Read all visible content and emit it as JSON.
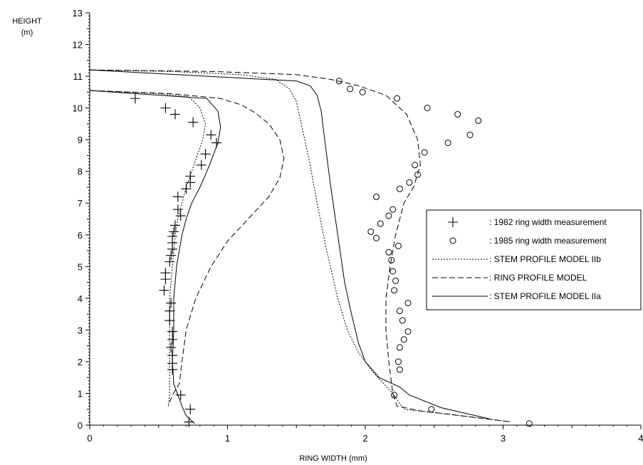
{
  "chart_data": {
    "type": "line",
    "xlabel": "RING WIDTH (mm)",
    "ylabel_line1": "HEIGHT",
    "ylabel_line2": "(m)",
    "xlim": [
      0,
      4
    ],
    "ylim": [
      0,
      13
    ],
    "x_ticks": [
      "0",
      "1",
      "2",
      "3",
      "4"
    ],
    "y_ticks": [
      "0",
      "1",
      "2",
      "3",
      "4",
      "5",
      "6",
      "7",
      "8",
      "9",
      "10",
      "11",
      "12",
      "13"
    ],
    "grid": false,
    "legend_position": "right",
    "legend": [
      {
        "label": ": 1982 ring width measurement",
        "marker": "plus"
      },
      {
        "label": ": 1985 ring width measurement",
        "marker": "circle"
      },
      {
        "label": ": STEM PROFILE MODEL IIb",
        "line": "dotted"
      },
      {
        "label": ": RING PROFILE MODEL",
        "line": "dashed"
      },
      {
        "label": ": STEM PROFILE MODEL IIa",
        "line": "solid"
      }
    ],
    "series": [
      {
        "name": "1982 ring width measurement",
        "kind": "scatter",
        "marker": "plus",
        "points": [
          [
            0.33,
            10.3
          ],
          [
            0.55,
            10.0
          ],
          [
            0.62,
            9.8
          ],
          [
            0.75,
            9.55
          ],
          [
            0.88,
            9.15
          ],
          [
            0.92,
            8.9
          ],
          [
            0.84,
            8.55
          ],
          [
            0.81,
            8.2
          ],
          [
            0.73,
            7.85
          ],
          [
            0.73,
            7.65
          ],
          [
            0.7,
            7.45
          ],
          [
            0.64,
            7.2
          ],
          [
            0.64,
            6.8
          ],
          [
            0.66,
            6.6
          ],
          [
            0.62,
            6.3
          ],
          [
            0.61,
            6.1
          ],
          [
            0.6,
            5.95
          ],
          [
            0.6,
            5.75
          ],
          [
            0.6,
            5.55
          ],
          [
            0.59,
            5.35
          ],
          [
            0.58,
            5.15
          ],
          [
            0.55,
            4.8
          ],
          [
            0.55,
            4.6
          ],
          [
            0.54,
            4.25
          ],
          [
            0.59,
            3.85
          ],
          [
            0.58,
            3.6
          ],
          [
            0.58,
            3.3
          ],
          [
            0.6,
            2.95
          ],
          [
            0.6,
            2.7
          ],
          [
            0.59,
            2.45
          ],
          [
            0.6,
            2.2
          ],
          [
            0.6,
            1.95
          ],
          [
            0.6,
            1.75
          ],
          [
            0.66,
            0.95
          ],
          [
            0.73,
            0.5
          ],
          [
            0.72,
            0.1
          ]
        ]
      },
      {
        "name": "1985 ring width measurement",
        "kind": "scatter",
        "marker": "circle",
        "points": [
          [
            1.81,
            10.85
          ],
          [
            1.89,
            10.6
          ],
          [
            1.98,
            10.5
          ],
          [
            2.23,
            10.3
          ],
          [
            2.45,
            10.0
          ],
          [
            2.67,
            9.8
          ],
          [
            2.82,
            9.6
          ],
          [
            2.76,
            9.15
          ],
          [
            2.6,
            8.9
          ],
          [
            2.43,
            8.6
          ],
          [
            2.36,
            8.2
          ],
          [
            2.38,
            7.9
          ],
          [
            2.32,
            7.65
          ],
          [
            2.25,
            7.45
          ],
          [
            2.08,
            7.2
          ],
          [
            2.2,
            6.8
          ],
          [
            2.17,
            6.6
          ],
          [
            2.11,
            6.35
          ],
          [
            2.04,
            6.1
          ],
          [
            2.08,
            5.9
          ],
          [
            2.24,
            5.65
          ],
          [
            2.17,
            5.45
          ],
          [
            2.19,
            5.2
          ],
          [
            2.2,
            4.85
          ],
          [
            2.22,
            4.55
          ],
          [
            2.21,
            4.25
          ],
          [
            2.31,
            3.85
          ],
          [
            2.25,
            3.6
          ],
          [
            2.27,
            3.3
          ],
          [
            2.31,
            2.95
          ],
          [
            2.28,
            2.7
          ],
          [
            2.25,
            2.45
          ],
          [
            2.24,
            2.0
          ],
          [
            2.25,
            1.75
          ],
          [
            2.21,
            0.95
          ],
          [
            2.48,
            0.5
          ],
          [
            3.19,
            0.05
          ]
        ]
      },
      {
        "name": "STEM PROFILE MODEL IIb",
        "kind": "line",
        "dash": "2,2",
        "points": [
          [
            0.0,
            10.55
          ],
          [
            0.5,
            10.45
          ],
          [
            0.72,
            10.35
          ],
          [
            0.8,
            10.0
          ],
          [
            0.84,
            9.5
          ],
          [
            0.82,
            9.0
          ],
          [
            0.78,
            8.5
          ],
          [
            0.74,
            8.0
          ],
          [
            0.7,
            7.5
          ],
          [
            0.67,
            7.0
          ],
          [
            0.64,
            6.5
          ],
          [
            0.62,
            6.0
          ],
          [
            0.61,
            5.5
          ],
          [
            0.6,
            5.0
          ],
          [
            0.59,
            4.5
          ],
          [
            0.58,
            4.0
          ],
          [
            0.58,
            3.0
          ],
          [
            0.58,
            2.0
          ],
          [
            0.58,
            1.0
          ],
          [
            0.57,
            0.6
          ]
        ]
      },
      {
        "name": "STEM PROFILE MODEL IIb upper",
        "kind": "line",
        "dash": "2,2",
        "points": [
          [
            0.0,
            11.2
          ],
          [
            0.6,
            11.15
          ],
          [
            1.1,
            11.05
          ],
          [
            1.35,
            10.9
          ],
          [
            1.45,
            10.6
          ],
          [
            1.5,
            10.2
          ],
          [
            1.53,
            9.6
          ],
          [
            1.56,
            9.0
          ],
          [
            1.6,
            8.2
          ],
          [
            1.65,
            7.0
          ],
          [
            1.72,
            5.5
          ],
          [
            1.8,
            4.0
          ],
          [
            1.87,
            3.0
          ],
          [
            1.95,
            2.3
          ],
          [
            2.05,
            1.7
          ],
          [
            2.2,
            1.0
          ],
          [
            2.28,
            0.5
          ],
          [
            2.6,
            0.35
          ],
          [
            3.06,
            0.1
          ]
        ]
      },
      {
        "name": "RING PROFILE MODEL",
        "kind": "line",
        "dash": "8,4",
        "points": [
          [
            0.0,
            10.55
          ],
          [
            0.6,
            10.45
          ],
          [
            0.95,
            10.3
          ],
          [
            1.1,
            10.1
          ],
          [
            1.2,
            9.85
          ],
          [
            1.3,
            9.5
          ],
          [
            1.38,
            9.0
          ],
          [
            1.41,
            8.4
          ],
          [
            1.38,
            7.8
          ],
          [
            1.3,
            7.2
          ],
          [
            1.15,
            6.5
          ],
          [
            1.0,
            5.8
          ],
          [
            0.88,
            5.0
          ],
          [
            0.77,
            4.0
          ],
          [
            0.7,
            3.0
          ],
          [
            0.67,
            2.0
          ],
          [
            0.65,
            1.3
          ],
          [
            0.6,
            0.95
          ],
          [
            0.57,
            0.6
          ]
        ]
      },
      {
        "name": "RING PROFILE MODEL upper",
        "kind": "line",
        "dash": "8,4",
        "points": [
          [
            0.0,
            11.2
          ],
          [
            0.9,
            11.15
          ],
          [
            1.5,
            11.05
          ],
          [
            1.75,
            10.9
          ],
          [
            1.95,
            10.7
          ],
          [
            2.15,
            10.4
          ],
          [
            2.3,
            9.8
          ],
          [
            2.38,
            9.0
          ],
          [
            2.4,
            8.2
          ],
          [
            2.35,
            7.5
          ],
          [
            2.28,
            7.0
          ],
          [
            2.22,
            6.0
          ],
          [
            2.18,
            5.0
          ],
          [
            2.15,
            4.0
          ],
          [
            2.15,
            3.0
          ],
          [
            2.17,
            2.0
          ],
          [
            2.2,
            1.0
          ],
          [
            2.23,
            0.6
          ],
          [
            2.4,
            0.45
          ],
          [
            3.06,
            0.1
          ]
        ]
      },
      {
        "name": "STEM PROFILE MODEL IIa",
        "kind": "line",
        "dash": "",
        "points": [
          [
            0.0,
            10.55
          ],
          [
            0.85,
            10.3
          ],
          [
            0.93,
            9.9
          ],
          [
            0.95,
            9.4
          ],
          [
            0.93,
            8.9
          ],
          [
            0.87,
            8.2
          ],
          [
            0.8,
            7.5
          ],
          [
            0.74,
            7.0
          ],
          [
            0.7,
            6.5
          ],
          [
            0.67,
            6.0
          ],
          [
            0.65,
            5.5
          ],
          [
            0.63,
            5.0
          ],
          [
            0.62,
            4.5
          ],
          [
            0.61,
            4.0
          ],
          [
            0.61,
            3.0
          ],
          [
            0.6,
            2.0
          ],
          [
            0.61,
            1.3
          ],
          [
            0.67,
            0.6
          ],
          [
            0.7,
            0.3
          ],
          [
            0.76,
            0.05
          ]
        ]
      },
      {
        "name": "STEM PROFILE MODEL IIa upper",
        "kind": "line",
        "dash": "",
        "points": [
          [
            0.0,
            11.2
          ],
          [
            1.5,
            10.85
          ],
          [
            1.6,
            10.7
          ],
          [
            1.65,
            10.4
          ],
          [
            1.68,
            9.9
          ],
          [
            1.7,
            9.2
          ],
          [
            1.72,
            8.5
          ],
          [
            1.75,
            7.5
          ],
          [
            1.8,
            6.0
          ],
          [
            1.85,
            4.5
          ],
          [
            1.9,
            3.5
          ],
          [
            1.95,
            2.6
          ],
          [
            2.0,
            2.0
          ],
          [
            2.1,
            1.5
          ],
          [
            2.25,
            1.2
          ],
          [
            2.32,
            0.95
          ],
          [
            2.55,
            0.55
          ],
          [
            2.9,
            0.2
          ]
        ]
      }
    ]
  }
}
